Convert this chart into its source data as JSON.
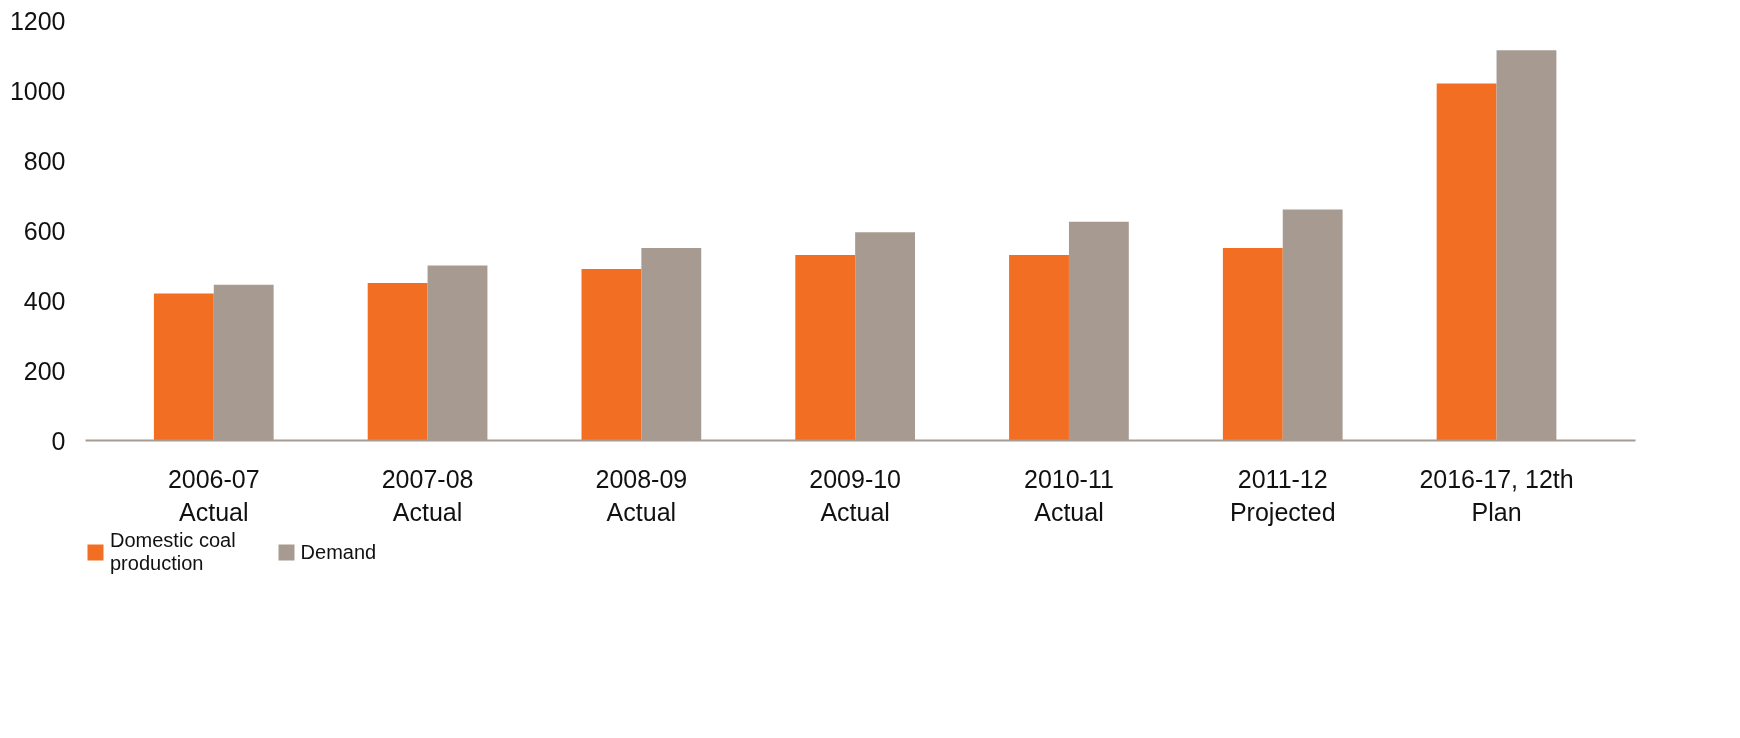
{
  "chart_data": {
    "type": "bar",
    "categories": [
      "2006-07\nActual",
      "2007-08\nActual",
      "2008-09\nActual",
      "2009-10\nActual",
      "2010-11\nActual",
      "2011-12\nProjected",
      "2016-17, 12th\nPlan"
    ],
    "series": [
      {
        "name": "Domestic coal\nproduction",
        "color": "#f26e22",
        "values": [
          420,
          450,
          490,
          530,
          530,
          550,
          1020
        ]
      },
      {
        "name": "Demand",
        "color": "#a79b91",
        "values": [
          445,
          500,
          550,
          595,
          625,
          660,
          1115
        ]
      }
    ],
    "ylim": [
      0,
      1200
    ],
    "yticks": [
      0,
      200,
      400,
      600,
      800,
      1000,
      1200
    ],
    "grid": false,
    "legend": "bottom left"
  }
}
